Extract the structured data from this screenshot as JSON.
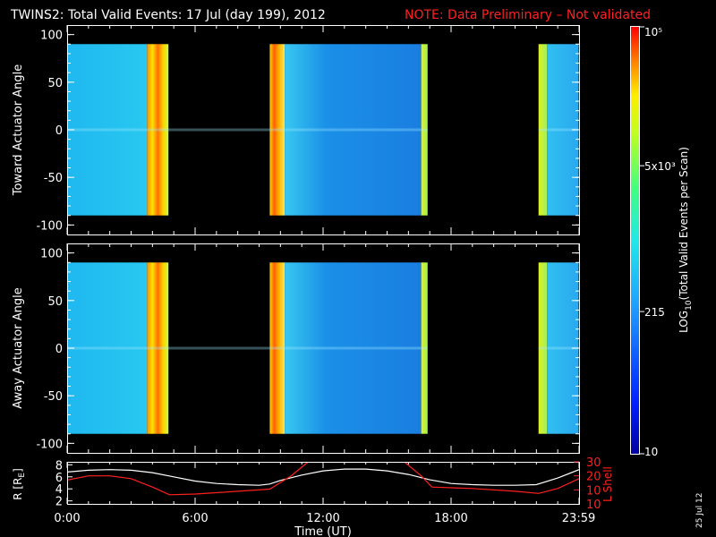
{
  "title": {
    "main": "TWINS2: Total Valid Events: 17 Jul (day 199), 2012",
    "note": "NOTE: Data Preliminary – Not validated"
  },
  "footer_date": "25 Jul 12",
  "colorbar": {
    "label": "LOG10(Total Valid Events per Scan)",
    "label_prefix": "LOG",
    "label_sub": "10",
    "label_suffix": "(Total Valid Events per Scan)",
    "ticks": [
      "10",
      "215",
      "5x10³",
      "10⁵"
    ],
    "tick_values": [
      10,
      215,
      5000,
      100000
    ]
  },
  "chart_data": [
    {
      "type": "heatmap",
      "title": "",
      "xlabel": "",
      "ylabel": "Toward Actuator Angle",
      "xlim": [
        0,
        24
      ],
      "ylim": [
        -110,
        110
      ],
      "yticks": [
        "100",
        "50",
        "0",
        "-50",
        "-100"
      ],
      "angle_range": [
        -90,
        90
      ],
      "scale": "log10",
      "data_blocks": [
        {
          "start_hr": 0.0,
          "end_hr": 3.75,
          "level": "cyan-blue"
        },
        {
          "start_hr": 3.75,
          "end_hr": 4.75,
          "level": "yellow-orange-red"
        },
        {
          "start_hr": 9.5,
          "end_hr": 10.2,
          "level": "yellow-orange-red"
        },
        {
          "start_hr": 10.2,
          "end_hr": 16.6,
          "level": "cyan-blue"
        },
        {
          "start_hr": 16.6,
          "end_hr": 16.9,
          "level": "yellow-green"
        },
        {
          "start_hr": 22.1,
          "end_hr": 22.5,
          "level": "yellow-green"
        },
        {
          "start_hr": 22.5,
          "end_hr": 23.98,
          "level": "cyan-blue"
        }
      ]
    },
    {
      "type": "heatmap",
      "title": "",
      "xlabel": "",
      "ylabel": "Away Actuator Angle",
      "xlim": [
        0,
        24
      ],
      "ylim": [
        -110,
        110
      ],
      "yticks": [
        "100",
        "50",
        "0",
        "-50",
        "-100"
      ],
      "angle_range": [
        -90,
        90
      ],
      "scale": "log10",
      "data_blocks": [
        {
          "start_hr": 0.0,
          "end_hr": 3.75,
          "level": "cyan-blue"
        },
        {
          "start_hr": 3.75,
          "end_hr": 4.75,
          "level": "yellow-orange-red"
        },
        {
          "start_hr": 9.5,
          "end_hr": 10.2,
          "level": "yellow-orange-red"
        },
        {
          "start_hr": 10.2,
          "end_hr": 16.6,
          "level": "cyan-blue"
        },
        {
          "start_hr": 16.6,
          "end_hr": 16.9,
          "level": "yellow-green"
        },
        {
          "start_hr": 22.1,
          "end_hr": 22.5,
          "level": "yellow-green"
        },
        {
          "start_hr": 22.5,
          "end_hr": 23.98,
          "level": "cyan-blue"
        }
      ]
    },
    {
      "type": "line",
      "title": "",
      "xlabel": "Time (UT)",
      "xticks": [
        "0:00",
        "6:00",
        "12:00",
        "18:00",
        "23:59"
      ],
      "xtick_values": [
        0,
        6,
        12,
        18,
        23.98
      ],
      "ylabel_left": "R [RE]",
      "ylabel_left_main": "R [R",
      "ylabel_left_sub": "E",
      "ylabel_left_end": "]",
      "ylabel_right": "L Shell",
      "yticks_left": [
        "2",
        "4",
        "6",
        "8"
      ],
      "yticks_right": [
        "10",
        "20",
        "30"
      ],
      "ylim_left": [
        1.5,
        8.5
      ],
      "ylim_right": [
        0,
        30
      ],
      "series": [
        {
          "axis": "left",
          "color": "#ffffff",
          "x": [
            0,
            1,
            2,
            3,
            4,
            5,
            6,
            7,
            8,
            9,
            9.5,
            10,
            11,
            12,
            13,
            14,
            15,
            16,
            17,
            18,
            19,
            20,
            21,
            22,
            23,
            24
          ],
          "y": [
            6.8,
            7.1,
            7.2,
            7.1,
            6.7,
            6.0,
            5.3,
            4.9,
            4.7,
            4.6,
            4.8,
            5.4,
            6.3,
            7.0,
            7.3,
            7.3,
            7.0,
            6.4,
            5.5,
            4.9,
            4.7,
            4.6,
            4.6,
            4.7,
            5.8,
            7.2
          ]
        },
        {
          "axis": "right",
          "color": "#ff2020",
          "x": [
            0,
            1,
            2,
            3,
            4,
            4.8,
            6,
            8,
            9.5,
            10.5,
            11.3,
            11.6,
            15.4,
            15.8,
            16.6,
            17.1,
            19,
            21,
            22.1,
            23,
            24
          ],
          "y": [
            17,
            20,
            20,
            18,
            12,
            6.5,
            7,
            9,
            10.5,
            20,
            30,
            32,
            32,
            30,
            20,
            12,
            11,
            9,
            7.5,
            11,
            18
          ]
        }
      ]
    }
  ]
}
